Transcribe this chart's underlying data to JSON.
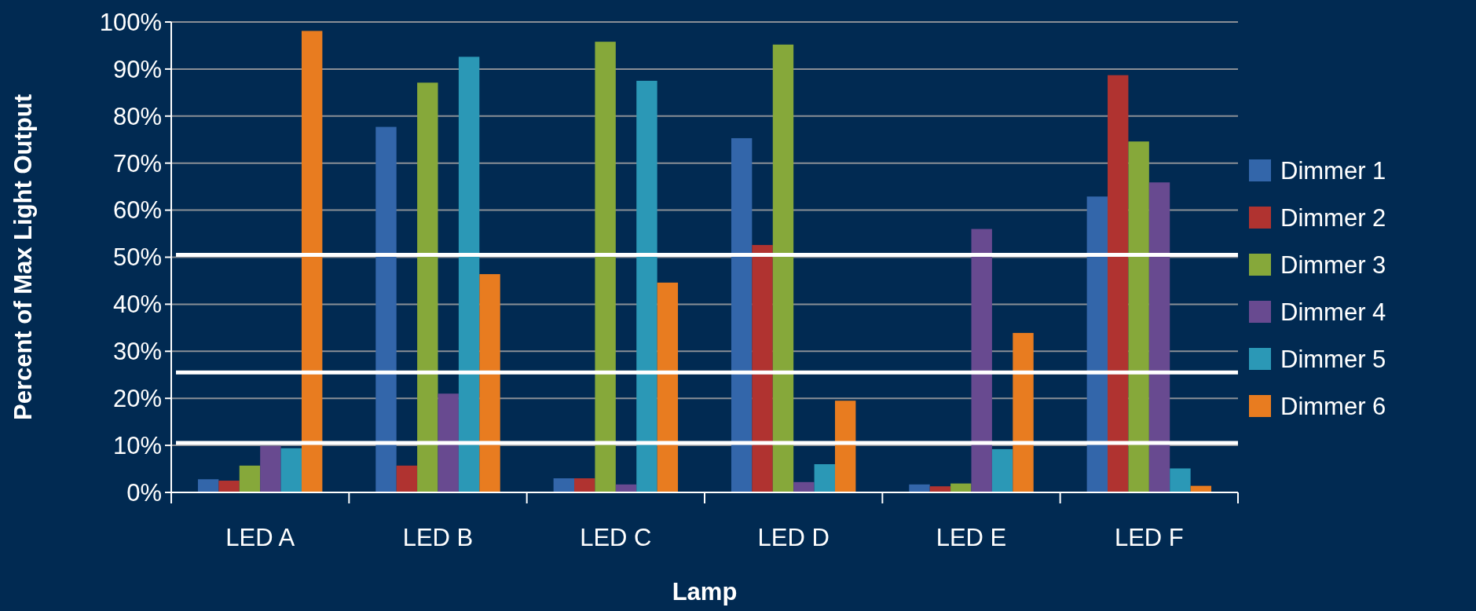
{
  "chart_data": {
    "type": "bar",
    "xlabel": "Lamp",
    "ylabel": "Percent of Max Light Output",
    "categories": [
      "LED A",
      "LED B",
      "LED C",
      "LED D",
      "LED E",
      "LED F"
    ],
    "series": [
      {
        "name": "Dimmer 1",
        "color": "#3366aa",
        "values": [
          2.8,
          77.7,
          3.0,
          75.3,
          1.7,
          62.9
        ]
      },
      {
        "name": "Dimmer 2",
        "color": "#b03330",
        "values": [
          2.5,
          5.7,
          3.0,
          52.6,
          1.3,
          88.7
        ]
      },
      {
        "name": "Dimmer 3",
        "color": "#86a83a",
        "values": [
          5.7,
          87.1,
          95.8,
          95.2,
          1.9,
          74.6
        ]
      },
      {
        "name": "Dimmer 4",
        "color": "#684a90",
        "values": [
          9.9,
          21.0,
          1.7,
          2.2,
          56.0,
          65.9
        ]
      },
      {
        "name": "Dimmer 5",
        "color": "#2b98b6",
        "values": [
          9.4,
          92.6,
          87.5,
          6.0,
          9.2,
          5.1
        ]
      },
      {
        "name": "Dimmer 6",
        "color": "#e87c20",
        "values": [
          98.1,
          46.4,
          44.6,
          19.5,
          33.9,
          1.4
        ]
      }
    ],
    "ylim": [
      0,
      100
    ],
    "yticks": [
      {
        "value": 0,
        "label": "0%"
      },
      {
        "value": 10,
        "label": "10%"
      },
      {
        "value": 20,
        "label": "20%"
      },
      {
        "value": 30,
        "label": "30%"
      },
      {
        "value": 40,
        "label": "40%"
      },
      {
        "value": 50,
        "label": "50%"
      },
      {
        "value": 60,
        "label": "60%"
      },
      {
        "value": 70,
        "label": "70%"
      },
      {
        "value": 80,
        "label": "80%"
      },
      {
        "value": 90,
        "label": "90%"
      },
      {
        "value": 100,
        "label": "100%"
      }
    ],
    "grid": "y",
    "legend": "right",
    "ref_lines": [
      {
        "axis": "y",
        "value": 50.5,
        "color": "#ffffff"
      },
      {
        "axis": "y",
        "value": 25.5,
        "color": "#ffffff"
      },
      {
        "axis": "y",
        "value": 10.5,
        "color": "#ffffff"
      }
    ]
  }
}
